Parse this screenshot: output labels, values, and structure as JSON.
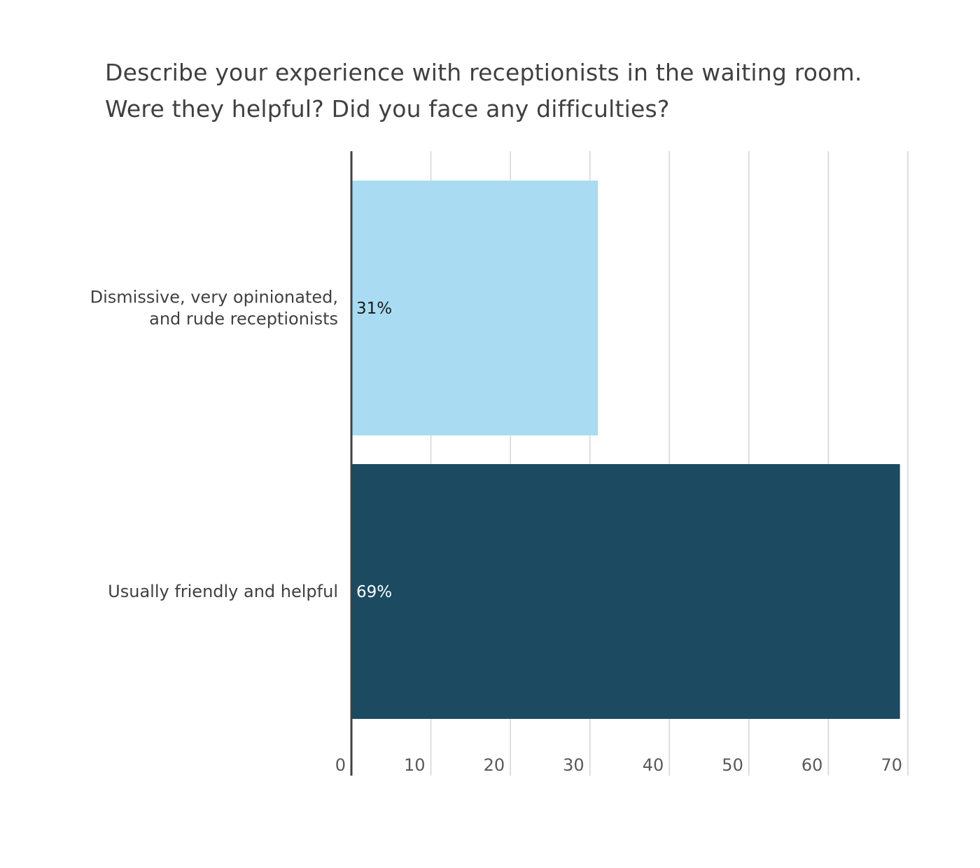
{
  "chart_data": {
    "type": "bar",
    "orientation": "horizontal",
    "title": "Describe your experience with receptionists in the waiting room. Were they helpful? Did you face any difficulties?",
    "categories": [
      [
        "Dismissive, very opinionated,",
        "and rude receptionists"
      ],
      [
        "Usually friendly and helpful"
      ]
    ],
    "values": [
      31,
      69
    ],
    "data_labels": [
      "31%",
      "69%"
    ],
    "xlim": [
      0,
      70
    ],
    "xticks": [
      "0",
      "10",
      "20",
      "30",
      "40",
      "50",
      "60",
      "70"
    ],
    "grid": "vertical",
    "legend": "none",
    "colors": {
      "bars": [
        "#a9dcf2",
        "#1b4a61"
      ],
      "data_label_text": [
        "#1a1a1a",
        "#ffffff"
      ],
      "gridline": "#d4d4d4",
      "axis_line": "#404040"
    }
  }
}
